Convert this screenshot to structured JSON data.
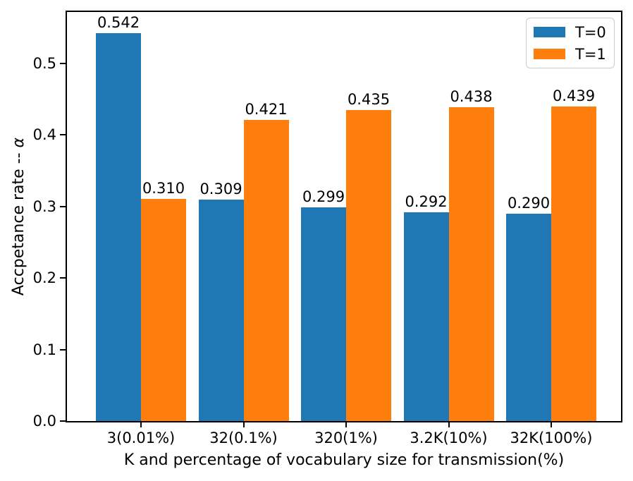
{
  "chart_data": {
    "type": "bar",
    "title": "",
    "xlabel": "K and percentage of vocabulary size for transmission(%)",
    "ylabel": "Accpetance rate -- α",
    "ylabel_prefix": "Accpetance rate -- ",
    "ylabel_symbol": "α",
    "categories": [
      "3(0.01%)",
      "32(0.1%)",
      "320(1%)",
      "3.2K(10%)",
      "32K(100%)"
    ],
    "series": [
      {
        "name": "T=0",
        "color": "#1f77b4",
        "values": [
          0.542,
          0.309,
          0.299,
          0.292,
          0.29
        ]
      },
      {
        "name": "T=1",
        "color": "#ff7f0e",
        "values": [
          0.31,
          0.421,
          0.435,
          0.438,
          0.439
        ]
      }
    ],
    "bar_value_label_decimals": 3,
    "yticks": [
      0.0,
      0.1,
      0.2,
      0.3,
      0.4,
      0.5
    ],
    "ytick_label_decimals": 1,
    "ylim": [
      0,
      0.5714
    ],
    "grid": false,
    "legend": {
      "position": "upper right",
      "entries": [
        "T=0",
        "T=1"
      ]
    },
    "frame_color": "#000000",
    "background_color": "#ffffff"
  }
}
